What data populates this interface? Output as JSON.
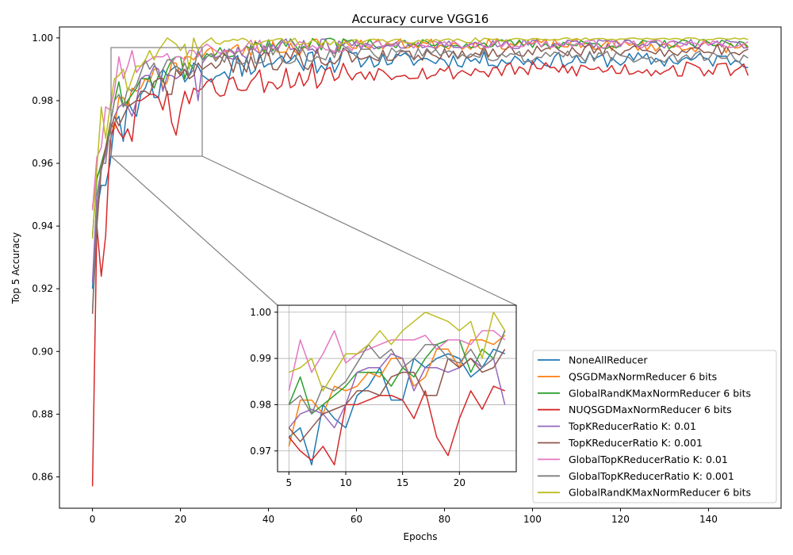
{
  "chart_data": {
    "type": "line",
    "title": "Accuracy curve VGG16",
    "xlabel": "Epochs",
    "ylabel": "Top 5 Accuracy",
    "xlim": [
      -7.5,
      156.5
    ],
    "ylim": [
      0.85,
      1.0035
    ],
    "xticks": [
      0,
      20,
      40,
      60,
      80,
      100,
      120,
      140
    ],
    "yticks": [
      0.86,
      0.88,
      0.9,
      0.92,
      0.94,
      0.96,
      0.98,
      1.0
    ],
    "grid": false,
    "legend_position": "lower-right",
    "x_range": [
      0,
      149
    ],
    "series": [
      {
        "name": "NoneAllReducer",
        "color": "#1f77b4",
        "start": [
          0.92,
          0.945,
          0.953,
          0.953,
          0.96,
          0.973,
          0.975,
          0.967,
          0.98,
          0.977,
          0.975,
          0.982,
          0.984,
          0.988,
          0.981,
          0.981,
          0.99,
          0.988,
          0.99,
          0.991,
          0.99,
          0.986,
          0.988,
          0.992,
          0.991,
          0.988,
          0.987,
          0.986
        ],
        "anchors": [
          [
            28,
            0.99
          ],
          [
            40,
            0.993
          ],
          [
            60,
            0.993
          ],
          [
            80,
            0.993
          ],
          [
            100,
            0.993
          ],
          [
            149,
            0.993
          ]
        ],
        "amp": 0.0025,
        "seed": 11
      },
      {
        "name": "QSGDMaxNormReducer 6 bits",
        "color": "#ff7f0e",
        "start": [
          0.946,
          0.956,
          0.958,
          0.965,
          0.973,
          0.971,
          0.981,
          0.981,
          0.978,
          0.984,
          0.983,
          0.984,
          0.987,
          0.986,
          0.99,
          0.99,
          0.984,
          0.986,
          0.992,
          0.992,
          0.988,
          0.994,
          0.994,
          0.993,
          0.995,
          0.994,
          0.996,
          0.997
        ],
        "anchors": [
          [
            28,
            0.995
          ],
          [
            40,
            0.997
          ],
          [
            60,
            0.998
          ],
          [
            80,
            0.998
          ],
          [
            100,
            0.998
          ],
          [
            149,
            0.997
          ]
        ],
        "amp": 0.0018,
        "seed": 23
      },
      {
        "name": "GlobalRandKMaxNormReducer 6 bits",
        "color": "#2ca02c",
        "start": [
          0.937,
          0.955,
          0.96,
          0.965,
          0.972,
          0.98,
          0.986,
          0.978,
          0.98,
          0.982,
          0.984,
          0.987,
          0.987,
          0.987,
          0.984,
          0.988,
          0.986,
          0.99,
          0.993,
          0.994,
          0.994,
          0.987,
          0.992,
          0.99,
          0.996,
          0.993,
          0.995,
          0.994
        ],
        "anchors": [
          [
            28,
            0.996
          ],
          [
            40,
            0.998
          ],
          [
            60,
            0.998
          ],
          [
            80,
            0.998
          ],
          [
            100,
            0.998
          ],
          [
            149,
            0.998
          ]
        ],
        "amp": 0.0015,
        "seed": 37
      },
      {
        "name": "NUQSGDMaxNormReducer 6 bits",
        "color": "#d62728",
        "start": [
          0.857,
          0.94,
          0.924,
          0.937,
          0.967,
          0.973,
          0.97,
          0.968,
          0.971,
          0.967,
          0.98,
          0.98,
          0.981,
          0.982,
          0.982,
          0.981,
          0.977,
          0.983,
          0.973,
          0.969,
          0.977,
          0.983,
          0.979,
          0.984,
          0.983,
          0.984,
          0.986,
          0.987
        ],
        "anchors": [
          [
            28,
            0.985
          ],
          [
            40,
            0.987
          ],
          [
            60,
            0.989
          ],
          [
            80,
            0.989
          ],
          [
            100,
            0.99
          ],
          [
            149,
            0.99
          ]
        ],
        "amp": 0.0025,
        "seed": 53
      },
      {
        "name": "TopKReducerRatio K: 0.01",
        "color": "#9467bd",
        "start": [
          0.922,
          0.95,
          0.958,
          0.963,
          0.97,
          0.975,
          0.978,
          0.979,
          0.978,
          0.975,
          0.98,
          0.987,
          0.988,
          0.988,
          0.991,
          0.99,
          0.983,
          0.988,
          0.988,
          0.987,
          0.988,
          0.99,
          0.988,
          0.99,
          0.98,
          0.992,
          0.994,
          0.995
        ],
        "anchors": [
          [
            28,
            0.995
          ],
          [
            40,
            0.997
          ],
          [
            60,
            0.998
          ],
          [
            80,
            0.998
          ],
          [
            100,
            0.998
          ],
          [
            149,
            0.998
          ]
        ],
        "amp": 0.0015,
        "seed": 67
      },
      {
        "name": "TopKReducerRatio K: 0.001",
        "color": "#8c564b",
        "start": [
          0.912,
          0.94,
          0.958,
          0.965,
          0.97,
          0.975,
          0.972,
          0.975,
          0.978,
          0.979,
          0.98,
          0.983,
          0.983,
          0.982,
          0.986,
          0.987,
          0.987,
          0.982,
          0.982,
          0.99,
          0.988,
          0.99,
          0.987,
          0.988,
          0.992,
          0.99,
          0.991,
          0.992
        ],
        "anchors": [
          [
            28,
            0.992
          ],
          [
            40,
            0.993
          ],
          [
            60,
            0.994
          ],
          [
            80,
            0.995
          ],
          [
            100,
            0.996
          ],
          [
            149,
            0.996
          ]
        ],
        "amp": 0.002,
        "seed": 79
      },
      {
        "name": "GlobalTopKReducerRatio K: 0.01",
        "color": "#e377c2",
        "start": [
          0.945,
          0.962,
          0.965,
          0.978,
          0.977,
          0.983,
          0.994,
          0.987,
          0.991,
          0.996,
          0.989,
          0.991,
          0.992,
          0.993,
          0.994,
          0.994,
          0.994,
          0.995,
          0.992,
          0.994,
          0.994,
          0.993,
          0.996,
          0.996,
          0.994,
          0.997,
          0.998,
          0.997
        ],
        "anchors": [
          [
            28,
            0.997
          ],
          [
            40,
            0.998
          ],
          [
            60,
            0.998
          ],
          [
            80,
            0.998
          ],
          [
            100,
            0.998
          ],
          [
            149,
            0.998
          ]
        ],
        "amp": 0.0013,
        "seed": 97
      },
      {
        "name": "GlobalTopKReducerRatio K: 0.001",
        "color": "#7f7f7f",
        "start": [
          0.913,
          0.945,
          0.96,
          0.96,
          0.972,
          0.98,
          0.982,
          0.978,
          0.984,
          0.983,
          0.985,
          0.989,
          0.993,
          0.99,
          0.992,
          0.988,
          0.99,
          0.993,
          0.993,
          0.99,
          0.989,
          0.992,
          0.988,
          0.99,
          0.996,
          0.993,
          0.994,
          0.995
        ],
        "anchors": [
          [
            28,
            0.994
          ],
          [
            40,
            0.995
          ],
          [
            60,
            0.995
          ],
          [
            80,
            0.995
          ],
          [
            100,
            0.994
          ],
          [
            149,
            0.994
          ]
        ],
        "amp": 0.0018,
        "seed": 113
      },
      {
        "name": "GlobalRandKMaxNormReducer 6 bits",
        "color": "#bcbd22",
        "start": [
          0.936,
          0.958,
          0.978,
          0.968,
          0.978,
          0.987,
          0.988,
          0.99,
          0.983,
          0.987,
          0.991,
          0.991,
          0.993,
          0.996,
          0.993,
          0.996,
          0.998,
          1.0,
          0.999,
          0.998,
          0.996,
          0.998,
          0.99,
          1.0,
          0.996,
          0.998,
          0.999,
          1.0
        ],
        "anchors": [
          [
            28,
            0.999
          ],
          [
            40,
            0.999
          ],
          [
            60,
            0.999
          ],
          [
            80,
            0.999
          ],
          [
            100,
            1.0
          ],
          [
            149,
            1.0
          ]
        ],
        "amp": 0.0008,
        "seed": 131
      }
    ],
    "inset": {
      "xlim": [
        4.0,
        25.0
      ],
      "ylim": [
        0.9655,
        1.0015
      ],
      "xticks": [
        5,
        10,
        15,
        20
      ],
      "yticks": [
        0.97,
        0.98,
        0.99,
        1.0
      ],
      "x_range": [
        5,
        24
      ],
      "grid": true
    }
  }
}
